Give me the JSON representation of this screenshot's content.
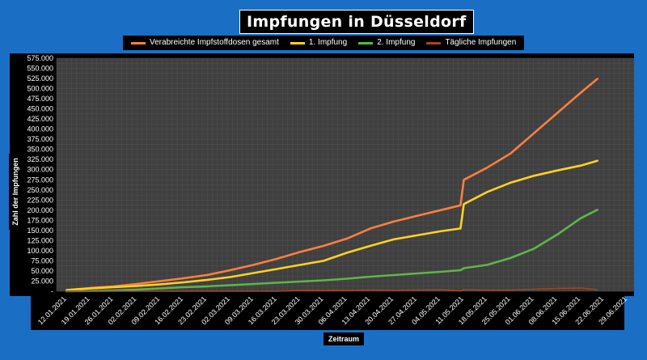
{
  "chart_data": {
    "type": "line",
    "title": "Impfungen in Düsseldorf",
    "xlabel": "Zeitraum",
    "ylabel": "Zahl der Impfungen",
    "ylim": [
      0,
      575000
    ],
    "y_ticks": [
      "-",
      "25.000",
      "50.000",
      "75.000",
      "100.000",
      "125.000",
      "150.000",
      "175.000",
      "200.000",
      "225.000",
      "250.000",
      "275.000",
      "300.000",
      "325.000",
      "350.000",
      "375.000",
      "400.000",
      "425.000",
      "450.000",
      "475.000",
      "500.000",
      "525.000",
      "550.000",
      "575.000"
    ],
    "x_ticks": [
      "12.01.2021",
      "19.01.2021",
      "26.01.2021",
      "02.02.2021",
      "09.02.2021",
      "16.02.2021",
      "23.02.2021",
      "02.03.2021",
      "09.03.2021",
      "16.03.2021",
      "23.03.2021",
      "30.03.2021",
      "06.04.2021",
      "13.04.2021",
      "20.04.2021",
      "27.04.2021",
      "04.05.2021",
      "11.05.2021",
      "18.05.2021",
      "25.05.2021",
      "01.06.2021",
      "08.06.2021",
      "15.06.2021",
      "22.06.2021",
      "29.06.2021"
    ],
    "grid": true,
    "legend_position": "top",
    "x": [
      "2021-01-12",
      "2021-01-19",
      "2021-01-26",
      "2021-02-02",
      "2021-02-09",
      "2021-02-16",
      "2021-02-23",
      "2021-03-02",
      "2021-03-09",
      "2021-03-16",
      "2021-03-23",
      "2021-03-30",
      "2021-04-06",
      "2021-04-13",
      "2021-04-20",
      "2021-04-27",
      "2021-05-04",
      "2021-05-10",
      "2021-05-11",
      "2021-05-18",
      "2021-05-25",
      "2021-06-01",
      "2021-06-08",
      "2021-06-15",
      "2021-06-20"
    ],
    "series": [
      {
        "name": "Verabreichte Impfstoffdosen gesamt",
        "color": "#ff7f3f",
        "values": [
          3000,
          8000,
          12000,
          18000,
          25000,
          32000,
          40000,
          52000,
          65000,
          80000,
          97000,
          112000,
          130000,
          155000,
          172000,
          186000,
          200000,
          212000,
          275000,
          305000,
          340000,
          390000,
          440000,
          490000,
          524000
        ]
      },
      {
        "name": "1. Impfung",
        "color": "#ffd21f",
        "values": [
          3000,
          7000,
          10000,
          13000,
          17000,
          22000,
          28000,
          35000,
          45000,
          55000,
          65000,
          75000,
          95000,
          112000,
          128000,
          138000,
          148000,
          155000,
          215000,
          245000,
          268000,
          285000,
          298000,
          310000,
          322000
        ]
      },
      {
        "name": "2. Impfung",
        "color": "#5fb548",
        "values": [
          0,
          500,
          1500,
          4000,
          7000,
          10000,
          12000,
          15000,
          18000,
          21000,
          24000,
          27000,
          31000,
          36000,
          40000,
          44000,
          48000,
          52000,
          57000,
          65000,
          82000,
          105000,
          140000,
          180000,
          201000
        ]
      },
      {
        "name": "Tägliche Impfungen",
        "color": "#a5461c",
        "values": [
          0,
          0,
          0,
          0,
          0,
          0,
          0,
          0,
          0,
          0,
          2000,
          1500,
          2000,
          3000,
          2000,
          3000,
          3500,
          1000,
          4000,
          2500,
          3000,
          5000,
          7000,
          8000,
          4000
        ]
      }
    ]
  }
}
